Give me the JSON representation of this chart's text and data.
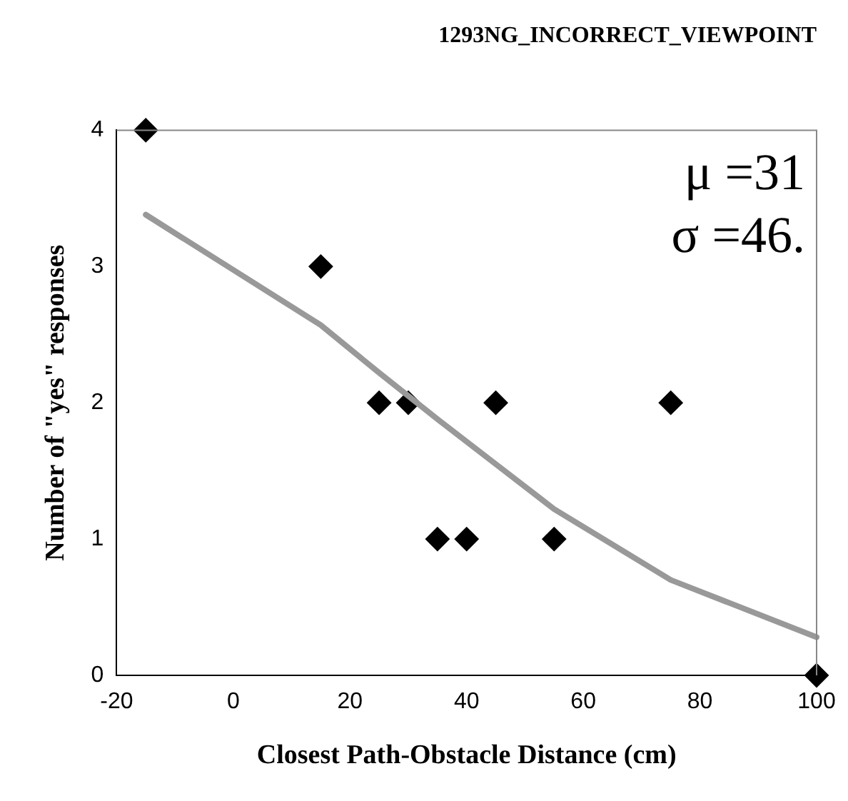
{
  "chart_data": {
    "type": "scatter",
    "title": "1293NG_INCORRECT_VIEWPOINT",
    "xlabel": "Closest Path-Obstacle Distance (cm)",
    "ylabel": "Number of \"yes\" responses",
    "annotations": [
      "μ =31",
      "σ =46."
    ],
    "xlim": [
      -20,
      100
    ],
    "xticks": [
      -20,
      0,
      20,
      40,
      60,
      80,
      100
    ],
    "ylim": [
      0,
      4
    ],
    "yticks": [
      0,
      1,
      2,
      3,
      4
    ],
    "series": [
      {
        "type": "line",
        "color": "#999999",
        "marker": "none",
        "line_style": "solid",
        "x": [
          -15,
          15,
          25,
          35,
          45,
          55,
          75,
          100
        ],
        "values": [
          3.38,
          2.57,
          2.22,
          1.88,
          1.55,
          1.22,
          0.7,
          0.28
        ]
      },
      {
        "color": "#000000",
        "marker": "diamond",
        "x": [
          -15,
          15,
          25,
          30,
          35,
          40,
          45,
          55,
          75,
          100
        ],
        "values": [
          4,
          3,
          2,
          2,
          1,
          1,
          2,
          1,
          2,
          0
        ]
      }
    ]
  }
}
